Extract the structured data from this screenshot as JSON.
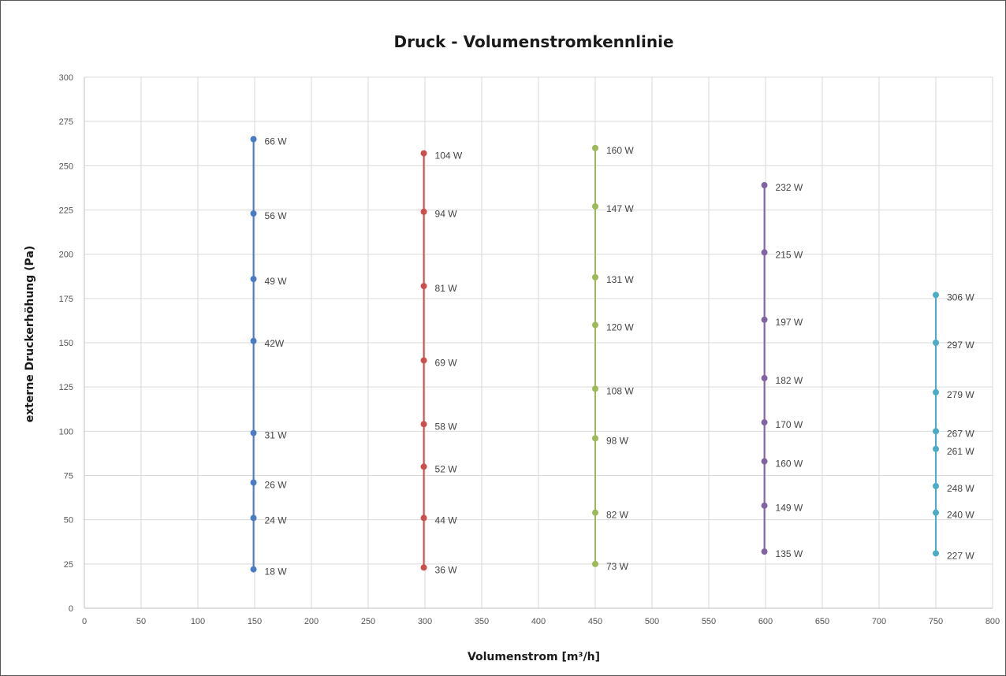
{
  "chart_data": {
    "type": "line",
    "title": "Druck - Volumenstromkennlinie",
    "xlabel": "Volumenstrom [m³/h]",
    "ylabel": "externe Druckerhöhung (Pa)",
    "xlim": [
      0,
      800
    ],
    "ylim": [
      0,
      300
    ],
    "xticks": [
      0,
      50,
      100,
      150,
      200,
      250,
      300,
      350,
      400,
      450,
      500,
      550,
      600,
      650,
      700,
      750,
      800
    ],
    "yticks": [
      0,
      25,
      50,
      75,
      100,
      125,
      150,
      175,
      200,
      225,
      250,
      275,
      300
    ],
    "grid": true,
    "series": [
      {
        "color": "#4a7cc4",
        "points": [
          {
            "x": 149,
            "y": 265,
            "label": "66 W"
          },
          {
            "x": 149,
            "y": 223,
            "label": "56 W"
          },
          {
            "x": 149,
            "y": 186,
            "label": "49 W"
          },
          {
            "x": 149,
            "y": 151,
            "label": "42W"
          },
          {
            "x": 149,
            "y": 99,
            "label": "31 W"
          },
          {
            "x": 149,
            "y": 71,
            "label": "26 W"
          },
          {
            "x": 149,
            "y": 51,
            "label": "24 W"
          },
          {
            "x": 149,
            "y": 22,
            "label": "18 W"
          }
        ]
      },
      {
        "color": "#c9504d",
        "points": [
          {
            "x": 299,
            "y": 257,
            "label": "104 W"
          },
          {
            "x": 299,
            "y": 224,
            "label": "94 W"
          },
          {
            "x": 299,
            "y": 182,
            "label": "81 W"
          },
          {
            "x": 299,
            "y": 140,
            "label": "69 W"
          },
          {
            "x": 299,
            "y": 104,
            "label": "58 W"
          },
          {
            "x": 299,
            "y": 80,
            "label": "52 W"
          },
          {
            "x": 299,
            "y": 51,
            "label": "44 W"
          },
          {
            "x": 299,
            "y": 23,
            "label": "36 W"
          }
        ]
      },
      {
        "color": "#9bbb59",
        "points": [
          {
            "x": 450,
            "y": 260,
            "label": "160 W"
          },
          {
            "x": 450,
            "y": 227,
            "label": "147 W"
          },
          {
            "x": 450,
            "y": 187,
            "label": "131 W"
          },
          {
            "x": 450,
            "y": 160,
            "label": "120 W"
          },
          {
            "x": 450,
            "y": 124,
            "label": "108 W"
          },
          {
            "x": 450,
            "y": 96,
            "label": "98 W"
          },
          {
            "x": 450,
            "y": 54,
            "label": "82 W"
          },
          {
            "x": 450,
            "y": 25,
            "label": "73 W"
          }
        ]
      },
      {
        "color": "#8064a2",
        "points": [
          {
            "x": 599,
            "y": 239,
            "label": "232 W"
          },
          {
            "x": 599,
            "y": 201,
            "label": "215 W"
          },
          {
            "x": 599,
            "y": 163,
            "label": "197 W"
          },
          {
            "x": 599,
            "y": 130,
            "label": "182 W"
          },
          {
            "x": 599,
            "y": 105,
            "label": "170 W"
          },
          {
            "x": 599,
            "y": 83,
            "label": "160 W"
          },
          {
            "x": 599,
            "y": 58,
            "label": "149 W"
          },
          {
            "x": 599,
            "y": 32,
            "label": "135 W"
          }
        ]
      },
      {
        "color": "#4bacc6",
        "points": [
          {
            "x": 750,
            "y": 177,
            "label": "306 W"
          },
          {
            "x": 750,
            "y": 150,
            "label": "297 W"
          },
          {
            "x": 750,
            "y": 122,
            "label": "279 W"
          },
          {
            "x": 750,
            "y": 100,
            "label": "267 W"
          },
          {
            "x": 750,
            "y": 90,
            "label": "261 W"
          },
          {
            "x": 750,
            "y": 69,
            "label": "248 W"
          },
          {
            "x": 750,
            "y": 54,
            "label": "240 W"
          },
          {
            "x": 750,
            "y": 31,
            "label": "227 W"
          }
        ]
      }
    ]
  }
}
